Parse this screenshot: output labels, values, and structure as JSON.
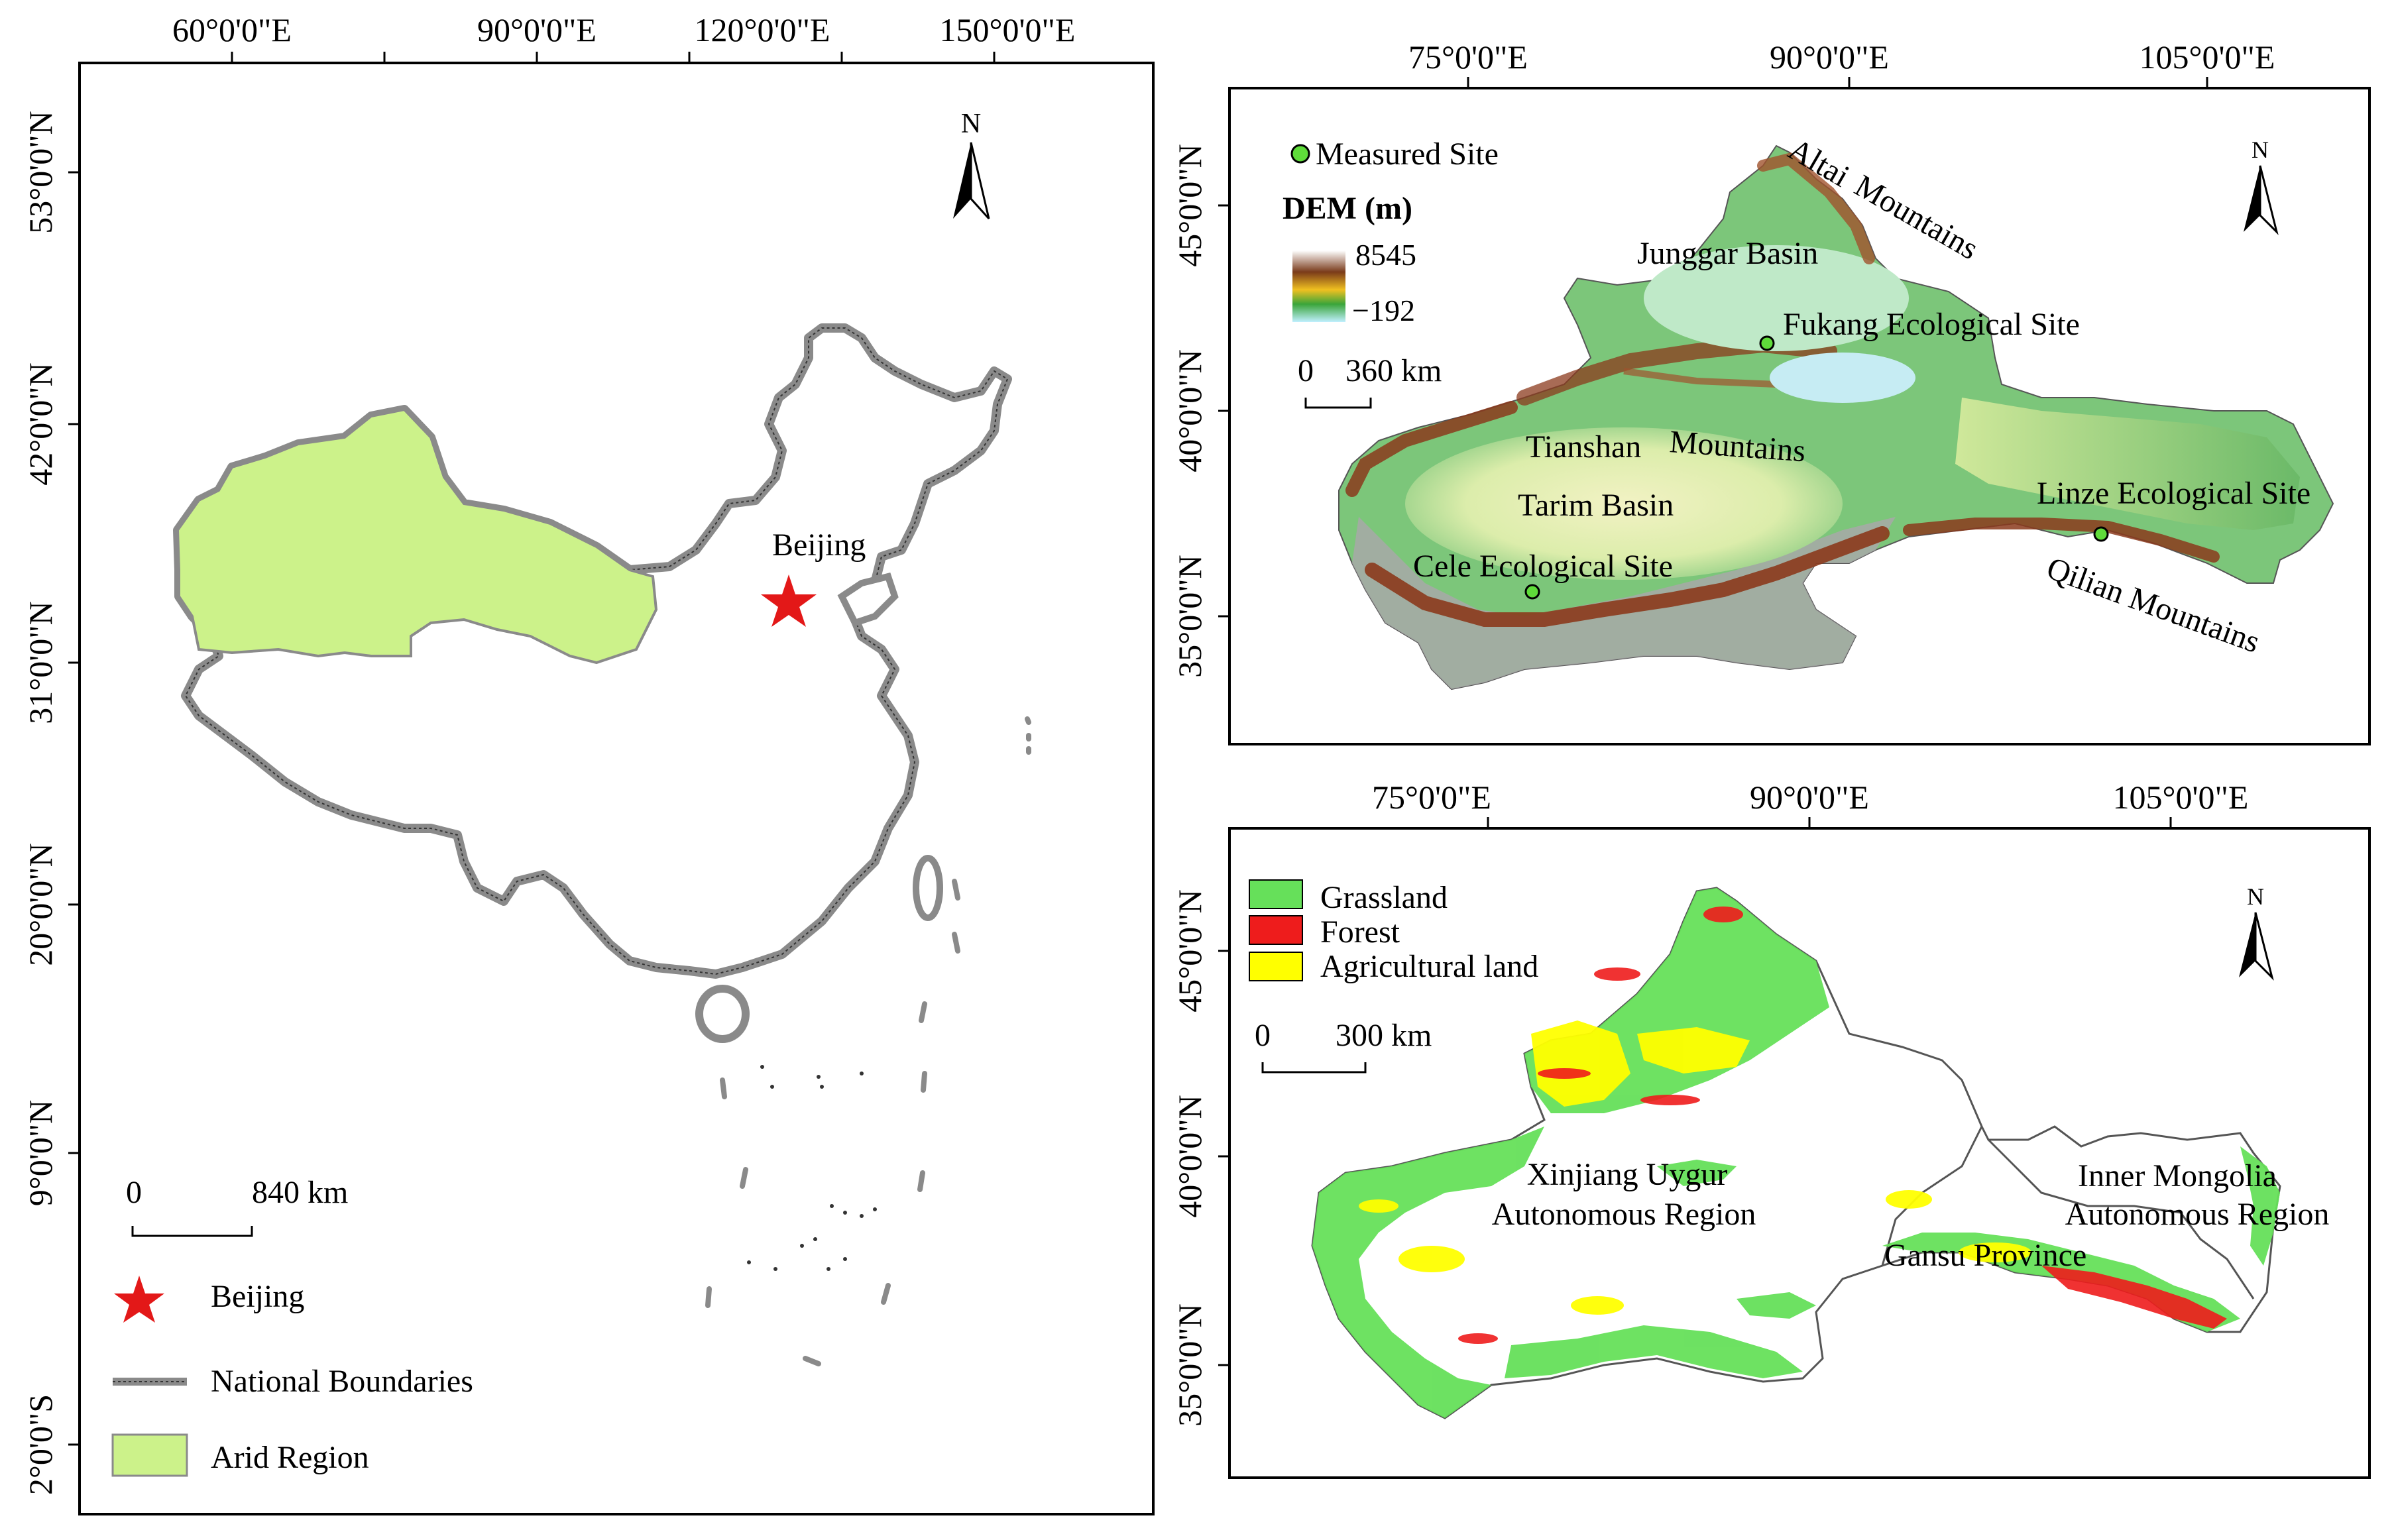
{
  "panel_a": {
    "top_ticks": [
      "60°0'0\"E",
      "90°0'0\"E",
      "120°0'0\"E",
      "150°0'0\"E"
    ],
    "left_ticks": [
      "53°0'0\"N",
      "42°0'0\"N",
      "31°0'0\"N",
      "20°0'0\"N",
      "9°0'0\"N",
      "2°0'0\"S"
    ],
    "north_label": "N",
    "city_label": "Beijing",
    "scale_zero": "0",
    "scale_end": "840 km",
    "legend": {
      "star": "Beijing",
      "boundary": "National Boundaries",
      "arid": "Arid Region"
    },
    "colors": {
      "arid": "#ccf28a",
      "star": "#e31818",
      "boundary": "#8a8a8a"
    }
  },
  "panel_b": {
    "top_ticks": [
      "75°0'0\"E",
      "90°0'0\"E",
      "105°0'0\"E"
    ],
    "left_ticks": [
      "45°0'0\"N",
      "40°0'0\"N",
      "35°0'0\"N"
    ],
    "north_label": "N",
    "legend_site": "Measured Site",
    "dem_title": "DEM (m)",
    "dem_max": "8545",
    "dem_min": "−192",
    "scale_zero": "0",
    "scale_end": "360 km",
    "labels": {
      "altai": "Altai",
      "mountains_altai": "Mountains",
      "junggar": "Junggar Basin",
      "fukang": "Fukang Ecological Site",
      "tianshan": "Tianshan",
      "mountains_tianshan": "Mountains",
      "tarim": "Tarim Basin",
      "cele": "Cele Ecological Site",
      "linze": "Linze Ecological Site",
      "qilian": "Qilian Mountains"
    },
    "colors": {
      "site": "#5fdc3a",
      "lowland": "#bfe9c8",
      "plain": "#e8efb0",
      "hills": "#7cc67a",
      "mountain": "#8b3a1c"
    }
  },
  "panel_c": {
    "top_ticks": [
      "75°0'0\"E",
      "90°0'0\"E",
      "105°0'0\"E"
    ],
    "left_ticks": [
      "45°0'0\"N",
      "40°0'0\"N",
      "35°0'0\"N"
    ],
    "north_label": "N",
    "legend": {
      "grassland": "Grassland",
      "forest": "Forest",
      "agri": "Agricultural land"
    },
    "scale_zero": "0",
    "scale_end": "300 km",
    "regions": {
      "xinjiang_1": "Xinjiang Uygur",
      "xinjiang_2": "Autonomous Region",
      "mongolia_1": "Inner Mongolia",
      "mongolia_2": "Autonomous Region",
      "gansu": "Gansu Province"
    },
    "colors": {
      "grassland": "#66e05a",
      "forest": "#ee1c1c",
      "agri": "#ffff00"
    }
  }
}
